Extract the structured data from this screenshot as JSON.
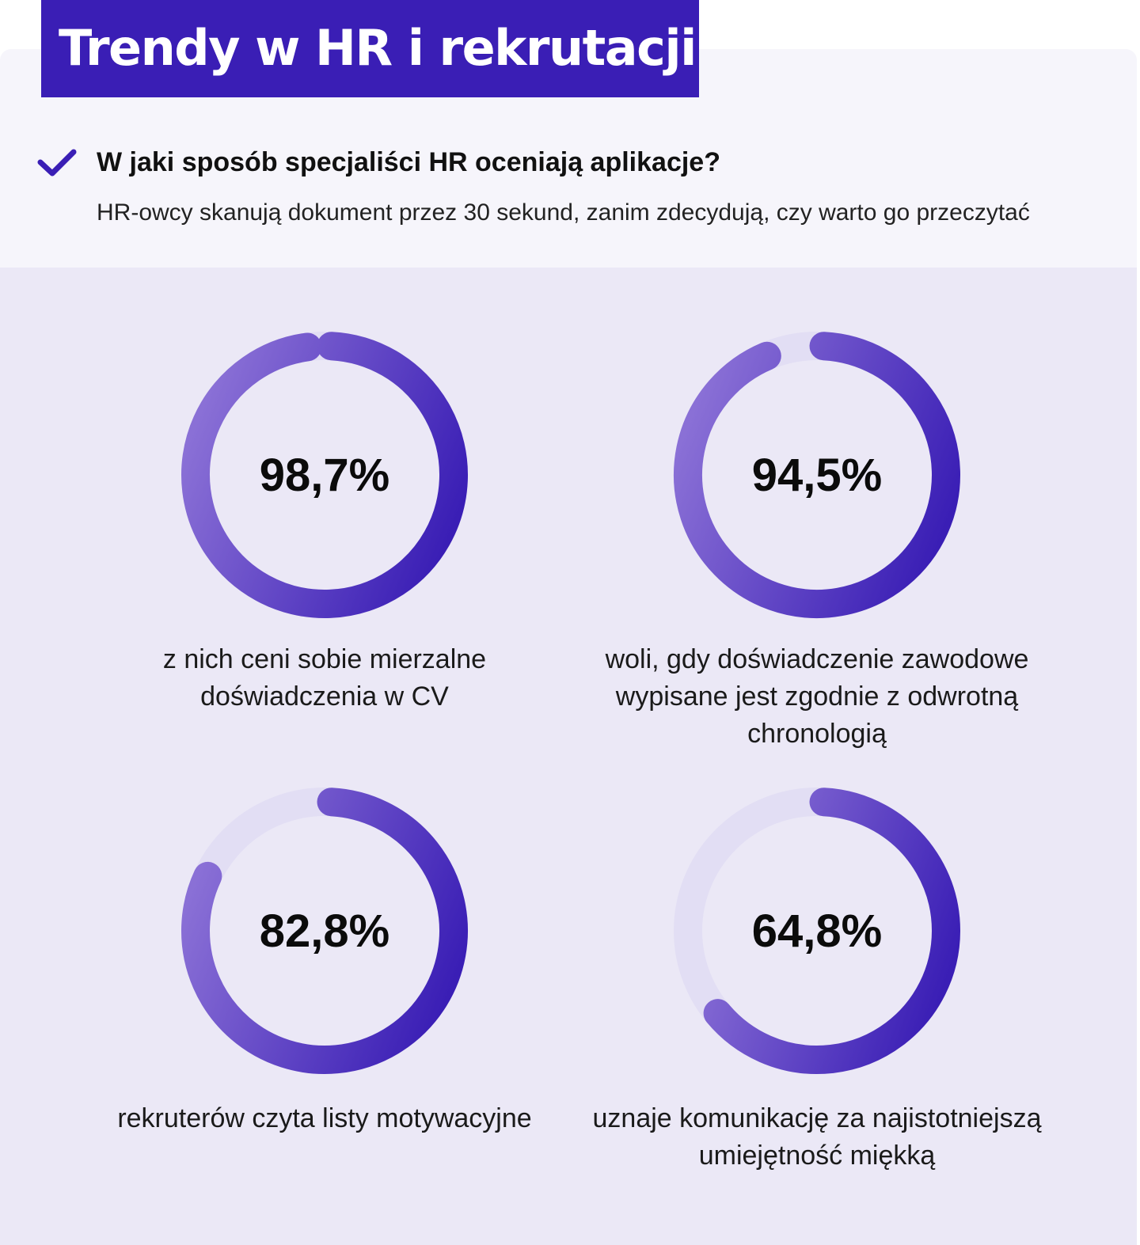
{
  "header": {
    "title": "Trendy w HR i rekrutacji",
    "question": "W jaki sposób specjaliści HR oceniają aplikacje?",
    "subtitle": "HR-owcy skanują dokument przez 30 sekund, zanim zdecydują, czy warto go przeczytać"
  },
  "icons": {
    "check": "check-icon"
  },
  "colors": {
    "banner": "#3a1eb5",
    "ring_dark": "#3a1eb5",
    "ring_light": "#8a70d6",
    "track": "#e2def4",
    "panel": "#ebe8f6",
    "top_panel": "#f6f5fb"
  },
  "chart_data": {
    "type": "pie",
    "title": "",
    "unit": "%",
    "stats": [
      {
        "value": 98.7,
        "value_label": "98,7%",
        "caption": "z nich ceni sobie mierzalne doświadczenia w CV"
      },
      {
        "value": 94.5,
        "value_label": "94,5%",
        "caption": "woli, gdy doświadczenie zawodowe wypisane jest zgodnie z odwrotną chronologią"
      },
      {
        "value": 82.8,
        "value_label": "82,8%",
        "caption": "rekruterów czyta listy motywacyjne"
      },
      {
        "value": 64.8,
        "value_label": "64,8%",
        "caption": "uznaje komunikację za najistotniejszą umiejętność miękką"
      }
    ]
  }
}
